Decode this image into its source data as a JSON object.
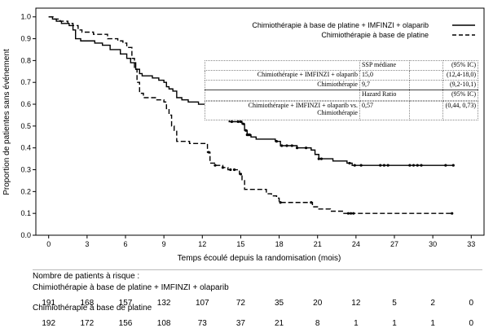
{
  "chart_data": {
    "type": "line",
    "title": "",
    "xlabel": "Temps écoulé depuis la randomisation (mois)",
    "ylabel": "Proportion de patientes sans événement",
    "xlim": [
      -1,
      34
    ],
    "ylim": [
      0,
      1.04
    ],
    "xticks": [
      0,
      3,
      6,
      9,
      12,
      15,
      18,
      21,
      24,
      27,
      30,
      33
    ],
    "yticks": [
      "0.0",
      "0.1",
      "0.2",
      "0.3",
      "0.4",
      "0.5",
      "0.6",
      "0.7",
      "0.8",
      "0.9",
      "1.0"
    ],
    "grid": false,
    "legend_position": "top-right",
    "series": [
      {
        "name": "Chimiothérapie à base de platine + IMFINZI + olaparib",
        "style": "solid",
        "points": [
          [
            0,
            1.0
          ],
          [
            0.3,
            0.99
          ],
          [
            0.6,
            0.98
          ],
          [
            1.0,
            0.97
          ],
          [
            1.6,
            0.96
          ],
          [
            1.9,
            0.94
          ],
          [
            2.1,
            0.9
          ],
          [
            2.5,
            0.89
          ],
          [
            3.6,
            0.88
          ],
          [
            4.2,
            0.87
          ],
          [
            4.8,
            0.85
          ],
          [
            5.6,
            0.83
          ],
          [
            6.1,
            0.81
          ],
          [
            6.4,
            0.79
          ],
          [
            6.8,
            0.76
          ],
          [
            7.1,
            0.74
          ],
          [
            7.3,
            0.73
          ],
          [
            8.1,
            0.72
          ],
          [
            8.6,
            0.71
          ],
          [
            9.0,
            0.7
          ],
          [
            9.2,
            0.68
          ],
          [
            9.4,
            0.67
          ],
          [
            9.7,
            0.66
          ],
          [
            10.0,
            0.63
          ],
          [
            10.4,
            0.62
          ],
          [
            10.9,
            0.61
          ],
          [
            11.7,
            0.6
          ],
          [
            12.5,
            0.6
          ],
          [
            12.7,
            0.59
          ],
          [
            12.9,
            0.57
          ],
          [
            13.2,
            0.55
          ],
          [
            13.5,
            0.54
          ],
          [
            13.8,
            0.53
          ],
          [
            14.1,
            0.52
          ],
          [
            14.6,
            0.52
          ],
          [
            15.1,
            0.51
          ],
          [
            15.3,
            0.48
          ],
          [
            15.5,
            0.46
          ],
          [
            15.8,
            0.45
          ],
          [
            16.2,
            0.44
          ],
          [
            17.3,
            0.44
          ],
          [
            17.7,
            0.43
          ],
          [
            18.1,
            0.41
          ],
          [
            19.4,
            0.4
          ],
          [
            20.5,
            0.39
          ],
          [
            20.8,
            0.37
          ],
          [
            21.1,
            0.35
          ],
          [
            22.2,
            0.34
          ],
          [
            23.3,
            0.33
          ],
          [
            23.7,
            0.32
          ],
          [
            31.6,
            0.32
          ]
        ],
        "censor_x": [
          12.3,
          14.3,
          14.8,
          15.0,
          15.2,
          15.4,
          15.5,
          15.6,
          15.7,
          17.8,
          18.2,
          18.6,
          19.0,
          19.4,
          20.1,
          21.1,
          21.3,
          23.5,
          23.9,
          24.4,
          25.9,
          26.2,
          26.5,
          28.2,
          28.5,
          28.8,
          29.1,
          31.0,
          31.6
        ]
      },
      {
        "name": "Chimiothérapie à base de platine",
        "style": "dashed",
        "points": [
          [
            0,
            1.0
          ],
          [
            0.4,
            0.99
          ],
          [
            0.9,
            0.98
          ],
          [
            1.5,
            0.97
          ],
          [
            1.9,
            0.96
          ],
          [
            2.3,
            0.94
          ],
          [
            2.6,
            0.93
          ],
          [
            3.5,
            0.92
          ],
          [
            4.6,
            0.9
          ],
          [
            5.4,
            0.89
          ],
          [
            5.8,
            0.88
          ],
          [
            6.1,
            0.86
          ],
          [
            6.5,
            0.81
          ],
          [
            6.7,
            0.76
          ],
          [
            6.9,
            0.7
          ],
          [
            7.1,
            0.65
          ],
          [
            7.4,
            0.63
          ],
          [
            8.4,
            0.62
          ],
          [
            9.0,
            0.61
          ],
          [
            9.2,
            0.58
          ],
          [
            9.4,
            0.55
          ],
          [
            9.6,
            0.5
          ],
          [
            9.8,
            0.48
          ],
          [
            10.0,
            0.43
          ],
          [
            10.8,
            0.43
          ],
          [
            11.0,
            0.42
          ],
          [
            12.1,
            0.42
          ],
          [
            12.4,
            0.38
          ],
          [
            12.6,
            0.33
          ],
          [
            13.0,
            0.32
          ],
          [
            13.6,
            0.31
          ],
          [
            14.0,
            0.3
          ],
          [
            14.6,
            0.3
          ],
          [
            14.9,
            0.28
          ],
          [
            15.1,
            0.25
          ],
          [
            15.3,
            0.21
          ],
          [
            16.7,
            0.21
          ],
          [
            17.0,
            0.19
          ],
          [
            17.4,
            0.18
          ],
          [
            17.8,
            0.17
          ],
          [
            18.0,
            0.15
          ],
          [
            20.2,
            0.15
          ],
          [
            20.6,
            0.13
          ],
          [
            21.1,
            0.12
          ],
          [
            22.0,
            0.11
          ],
          [
            23.0,
            0.1
          ],
          [
            31.5,
            0.1
          ]
        ],
        "censor_x": [
          12.5,
          13.0,
          13.6,
          14.2,
          14.5,
          15.0,
          18.1,
          20.5,
          23.4,
          23.6,
          23.8,
          31.5
        ]
      }
    ]
  },
  "table": {
    "rows": [
      [
        "",
        "SSP médiane",
        "",
        "(95% IC)"
      ],
      [
        "Chimiothérapie + IMFINZI + olaparib",
        "15,0",
        "",
        "(12,4-18,0)"
      ],
      [
        "Chimiothérapie",
        "9,7",
        "",
        "(9,2-10,1)"
      ],
      [
        "",
        "Hazard Ratio",
        "",
        "(95% IC)"
      ],
      [
        "",
        "",
        "",
        ""
      ],
      [
        "Chimiothérapie + IMFINZI + olaparib vs. Chimiothérapie",
        "0,57",
        "",
        "(0,44, 0,73)"
      ]
    ]
  },
  "risk": {
    "title": "Nombre de patients à risque :",
    "groups": [
      {
        "label": "Chimiothérapie à base de platine + IMFINZI + olaparib",
        "numbers": [
          "191",
          "168",
          "157",
          "132",
          "107",
          "72",
          "35",
          "20",
          "12",
          "5",
          "2",
          "0"
        ]
      },
      {
        "label": "Chimiothérapie à base de platine",
        "numbers": [
          "192",
          "172",
          "156",
          "108",
          "73",
          "37",
          "21",
          "8",
          "1",
          "1",
          "1",
          "0"
        ]
      }
    ]
  }
}
